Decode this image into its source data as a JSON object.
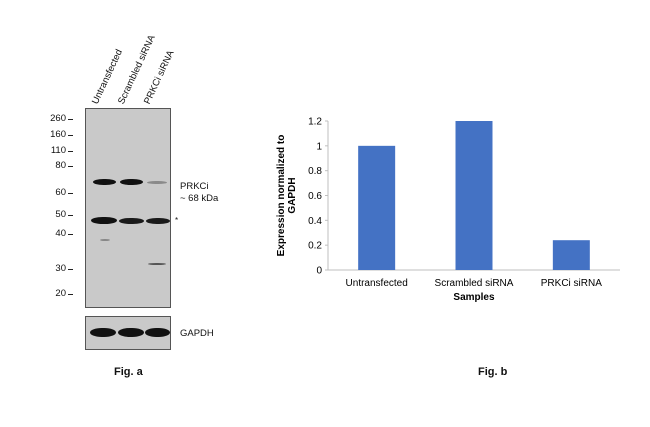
{
  "fig_a": {
    "lanes": [
      "Untransfected",
      "Scrambled siRNA",
      "PRKCi siRNA"
    ],
    "mw_markers": [
      "260",
      "160",
      "110",
      "80",
      "60",
      "50",
      "40",
      "30",
      "20"
    ],
    "target_label_line1": "PRKCi",
    "target_label_line2": "~ 68 kDa",
    "nonspecific_mark": "*",
    "loading_control_label": "GAPDH",
    "caption": "Fig. a"
  },
  "fig_b": {
    "caption": "Fig. b"
  },
  "chart_data": {
    "type": "bar",
    "categories": [
      "Untransfected",
      "Scrambled siRNA",
      "PRKCi siRNA"
    ],
    "values": [
      1.0,
      1.2,
      0.24
    ],
    "title": "",
    "xlabel": "Samples",
    "ylabel": "Expression normalized to GAPDH",
    "ylim": [
      0,
      1.2
    ],
    "yticks": [
      "0",
      "0.2",
      "0.4",
      "0.6",
      "0.8",
      "1",
      "1.2"
    ],
    "grid": false,
    "bar_color": "#4472c4"
  }
}
